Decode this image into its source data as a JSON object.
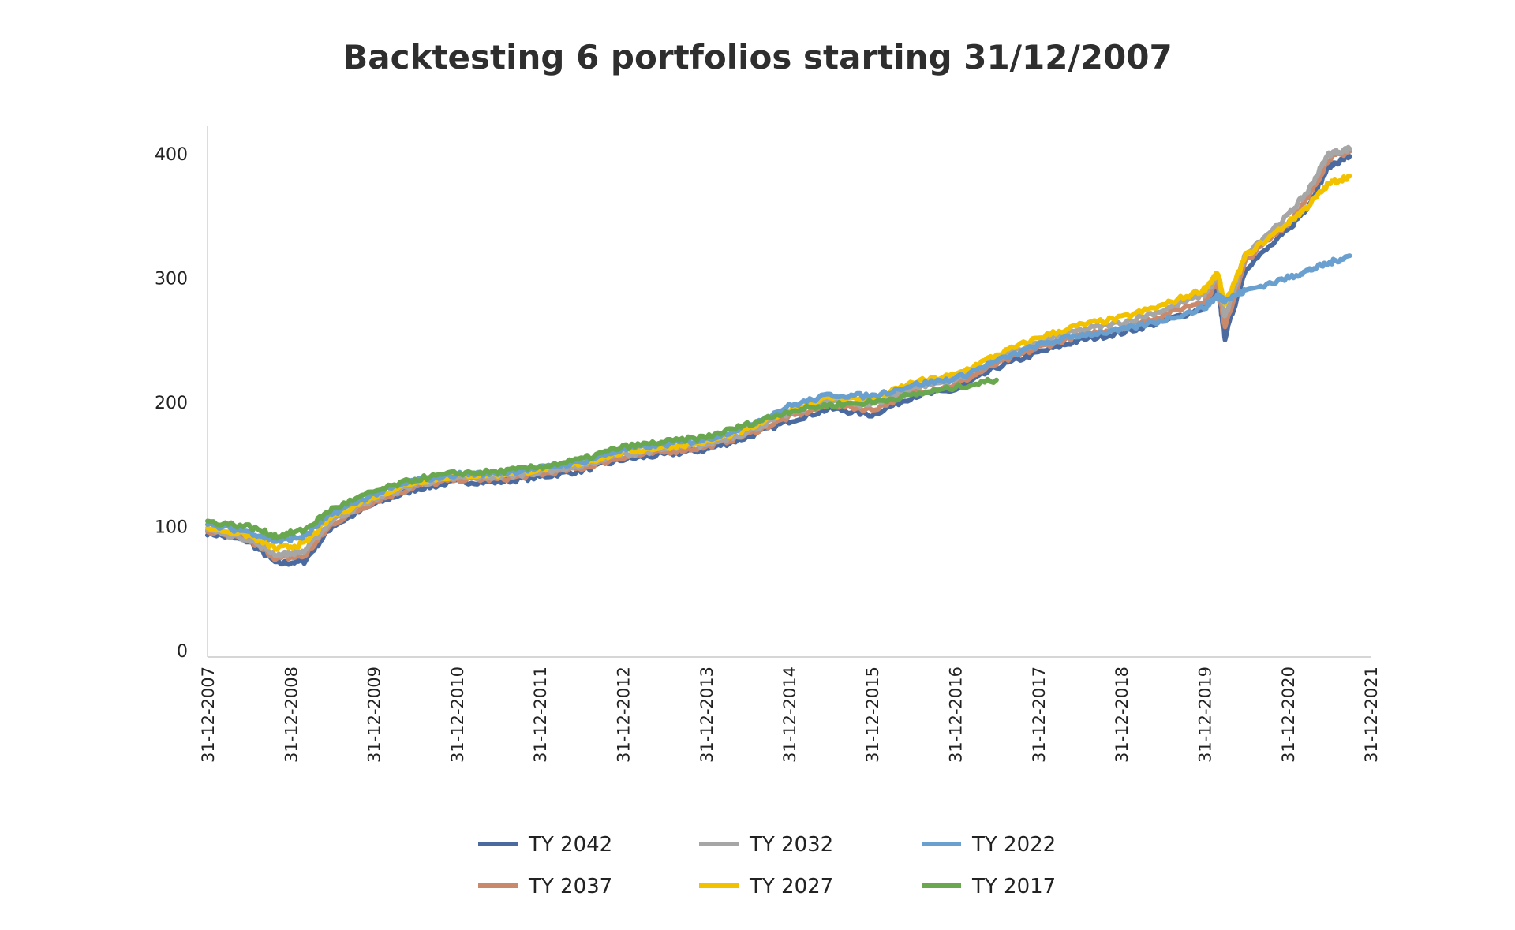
{
  "chart_data": {
    "type": "line",
    "title": "Backtesting 6 portfolios starting 31/12/2007",
    "xlabel": "",
    "ylabel": "",
    "ylim": [
      0,
      420
    ],
    "yticks": [
      0,
      100,
      200,
      300,
      400
    ],
    "x_ticks": [
      "31-12-2007",
      "31-12-2008",
      "31-12-2009",
      "31-12-2010",
      "31-12-2011",
      "31-12-2012",
      "31-12-2013",
      "31-12-2014",
      "31-12-2015",
      "31-12-2016",
      "31-12-2017",
      "31-12-2018",
      "31-12-2019",
      "31-12-2020",
      "31-12-2021"
    ],
    "xlim": [
      "31-12-2007",
      "31-12-2021"
    ],
    "legend_position": "bottom",
    "grid": false,
    "x": [
      "31-12-2007",
      "30-06-2008",
      "31-10-2008",
      "28-02-2009",
      "30-06-2009",
      "31-12-2009",
      "30-06-2010",
      "31-12-2010",
      "30-06-2011",
      "31-12-2011",
      "30-06-2012",
      "31-12-2012",
      "30-06-2013",
      "31-12-2013",
      "30-06-2014",
      "31-12-2014",
      "30-06-2015",
      "31-12-2015",
      "30-06-2016",
      "31-12-2016",
      "30-06-2017",
      "31-12-2017",
      "30-06-2018",
      "31-12-2018",
      "30-06-2019",
      "31-12-2019",
      "28-02-2020",
      "31-03-2020",
      "30-06-2020",
      "31-12-2020",
      "31-03-2021",
      "30-06-2021",
      "30-09-2021"
    ],
    "series": [
      {
        "name": "TY 2042",
        "color": "#4a6aa0",
        "values": [
          95,
          88,
          70,
          72,
          100,
          118,
          130,
          136,
          136,
          140,
          145,
          154,
          158,
          162,
          172,
          185,
          195,
          190,
          205,
          210,
          228,
          240,
          250,
          256,
          265,
          276,
          290,
          252,
          308,
          338,
          358,
          390,
          398
        ]
      },
      {
        "name": "TY 2037",
        "color": "#c9896a",
        "values": [
          96,
          89,
          74,
          76,
          102,
          120,
          132,
          138,
          138,
          142,
          147,
          156,
          160,
          164,
          174,
          188,
          198,
          194,
          208,
          214,
          231,
          244,
          254,
          260,
          270,
          282,
          296,
          260,
          314,
          344,
          364,
          396,
          402
        ]
      },
      {
        "name": "TY 2032",
        "color": "#a6a6a6",
        "values": [
          97,
          90,
          77,
          80,
          105,
          122,
          134,
          139,
          140,
          144,
          149,
          158,
          162,
          166,
          176,
          191,
          201,
          198,
          212,
          218,
          235,
          248,
          258,
          264,
          274,
          287,
          301,
          268,
          320,
          350,
          370,
          400,
          404
        ]
      },
      {
        "name": "TY 2027",
        "color": "#f2c200",
        "values": [
          99,
          93,
          82,
          86,
          108,
          124,
          136,
          141,
          142,
          146,
          151,
          160,
          164,
          168,
          178,
          194,
          204,
          202,
          216,
          222,
          238,
          252,
          262,
          268,
          278,
          291,
          304,
          278,
          318,
          344,
          358,
          376,
          382
        ]
      },
      {
        "name": "TY 2022",
        "color": "#6aa0cf",
        "values": [
          101,
          96,
          88,
          92,
          110,
          126,
          137,
          142,
          143,
          147,
          152,
          162,
          166,
          170,
          181,
          197,
          206,
          205,
          214,
          219,
          233,
          246,
          254,
          258,
          266,
          276,
          286,
          282,
          290,
          300,
          306,
          312,
          318
        ]
      },
      {
        "name": "TY 2017",
        "color": "#6aa84f",
        "values": [
          104,
          100,
          92,
          97,
          114,
          128,
          138,
          143,
          144,
          148,
          154,
          164,
          168,
          172,
          182,
          193,
          198,
          200,
          206,
          212,
          218,
          null,
          null,
          null,
          null,
          null,
          null,
          null,
          null,
          null,
          null,
          null,
          null
        ]
      }
    ]
  }
}
